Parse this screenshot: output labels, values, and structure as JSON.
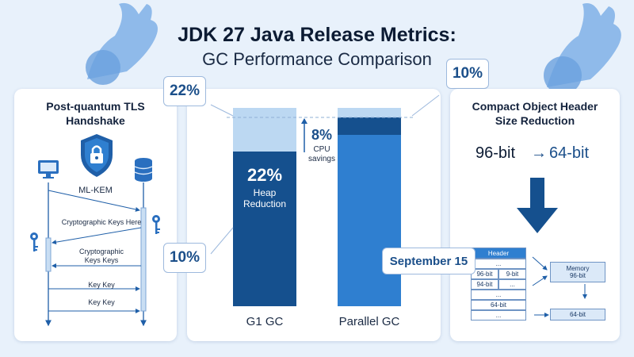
{
  "title": {
    "line1": "JDK 27 Java Release Metrics:",
    "line2": "GC Performance Comparison"
  },
  "left_panel": {
    "title_line1": "Post-quantum TLS",
    "title_line2": "Handshake",
    "shield_label": "ML-KEM",
    "messages": [
      "Cryptographic Keys Here",
      "Cryptographic",
      "Keys Keys",
      "Key Key",
      "Key Key"
    ],
    "icons": [
      "monitor-icon",
      "shield-lock-icon",
      "database-icon",
      "key-icon"
    ]
  },
  "center_panel": {
    "callout_top_left": "22%",
    "callout_bottom_left": "10%",
    "callout_top_right": "10%",
    "g1": {
      "value": "22%",
      "label_line1": "Heap",
      "label_line2": "Reduction",
      "axis_label": "G1 GC"
    },
    "parallel": {
      "axis_label": "Parallel GC"
    },
    "cpu": {
      "value": "8%",
      "label_line1": "CPU",
      "label_line2": "savings"
    },
    "colors": {
      "dark": "#15508e",
      "medium": "#2f7fd0",
      "light": "#bcd8f2"
    }
  },
  "right_panel": {
    "title_line1": "Compact Object Header",
    "title_line2": "Size Reduction",
    "from": "96-bit",
    "arrow": "→",
    "to": "64-bit",
    "date_callout": "September 15",
    "table": {
      "header": "Header",
      "rows": [
        [
          "..."
        ],
        [
          "96-bit",
          "9-bit"
        ],
        [
          "94-bit",
          "..."
        ],
        [
          "..."
        ],
        [
          "64-bit"
        ],
        [
          "..."
        ]
      ]
    },
    "memory_box_line1": "Memory",
    "memory_box_line2": "96-bit",
    "result_box": "64-bit"
  }
}
